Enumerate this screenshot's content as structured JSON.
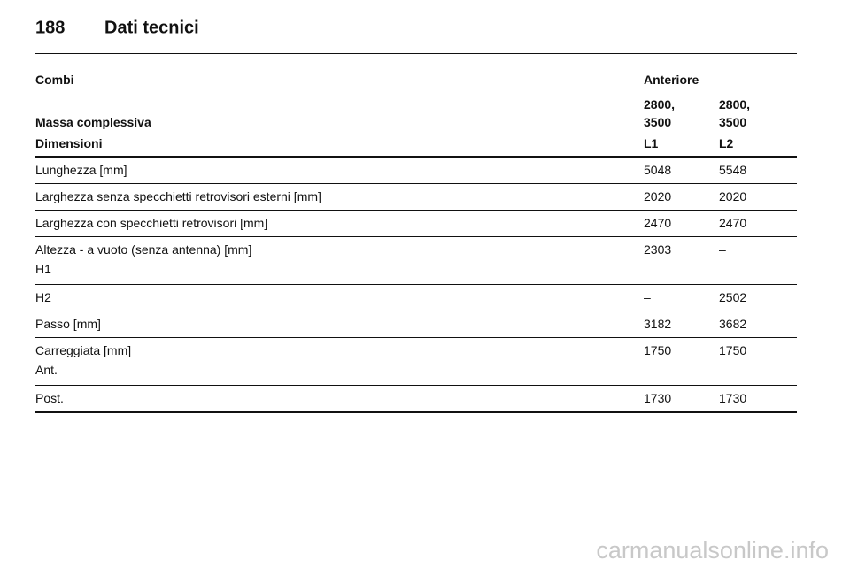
{
  "header": {
    "page_number": "188",
    "title": "Dati tecnici"
  },
  "table": {
    "top_row": [
      "Combi",
      "Anteriore"
    ],
    "mass_row": {
      "label": "Massa complessiva",
      "values": [
        [
          "2800,",
          "3500"
        ],
        [
          "2800,",
          "3500"
        ]
      ]
    },
    "column_header": [
      "Dimensioni",
      "L1",
      "L2"
    ],
    "rows": [
      {
        "label": "Lunghezza [mm]",
        "values": [
          "5048",
          "5548"
        ]
      },
      {
        "label": "Larghezza senza specchietti retrovisori esterni [mm]",
        "values": [
          "2020",
          "2020"
        ]
      },
      {
        "label": "Larghezza con specchietti retrovisori [mm]",
        "values": [
          "2470",
          "2470"
        ]
      },
      {
        "label": "Altezza - a vuoto (senza antenna) [mm]",
        "sublabel": "H1",
        "values": [
          "2303",
          "–"
        ]
      },
      {
        "label": "H2",
        "values": [
          "–",
          "2502"
        ]
      },
      {
        "label": "Passo [mm]",
        "values": [
          "3182",
          "3682"
        ]
      },
      {
        "label": "Carreggiata [mm]",
        "sublabel": "Ant.",
        "values": [
          "1750",
          "1750"
        ]
      },
      {
        "label": "Post.",
        "values": [
          "1730",
          "1730"
        ]
      }
    ]
  },
  "watermark": "carmanualsonline.info"
}
